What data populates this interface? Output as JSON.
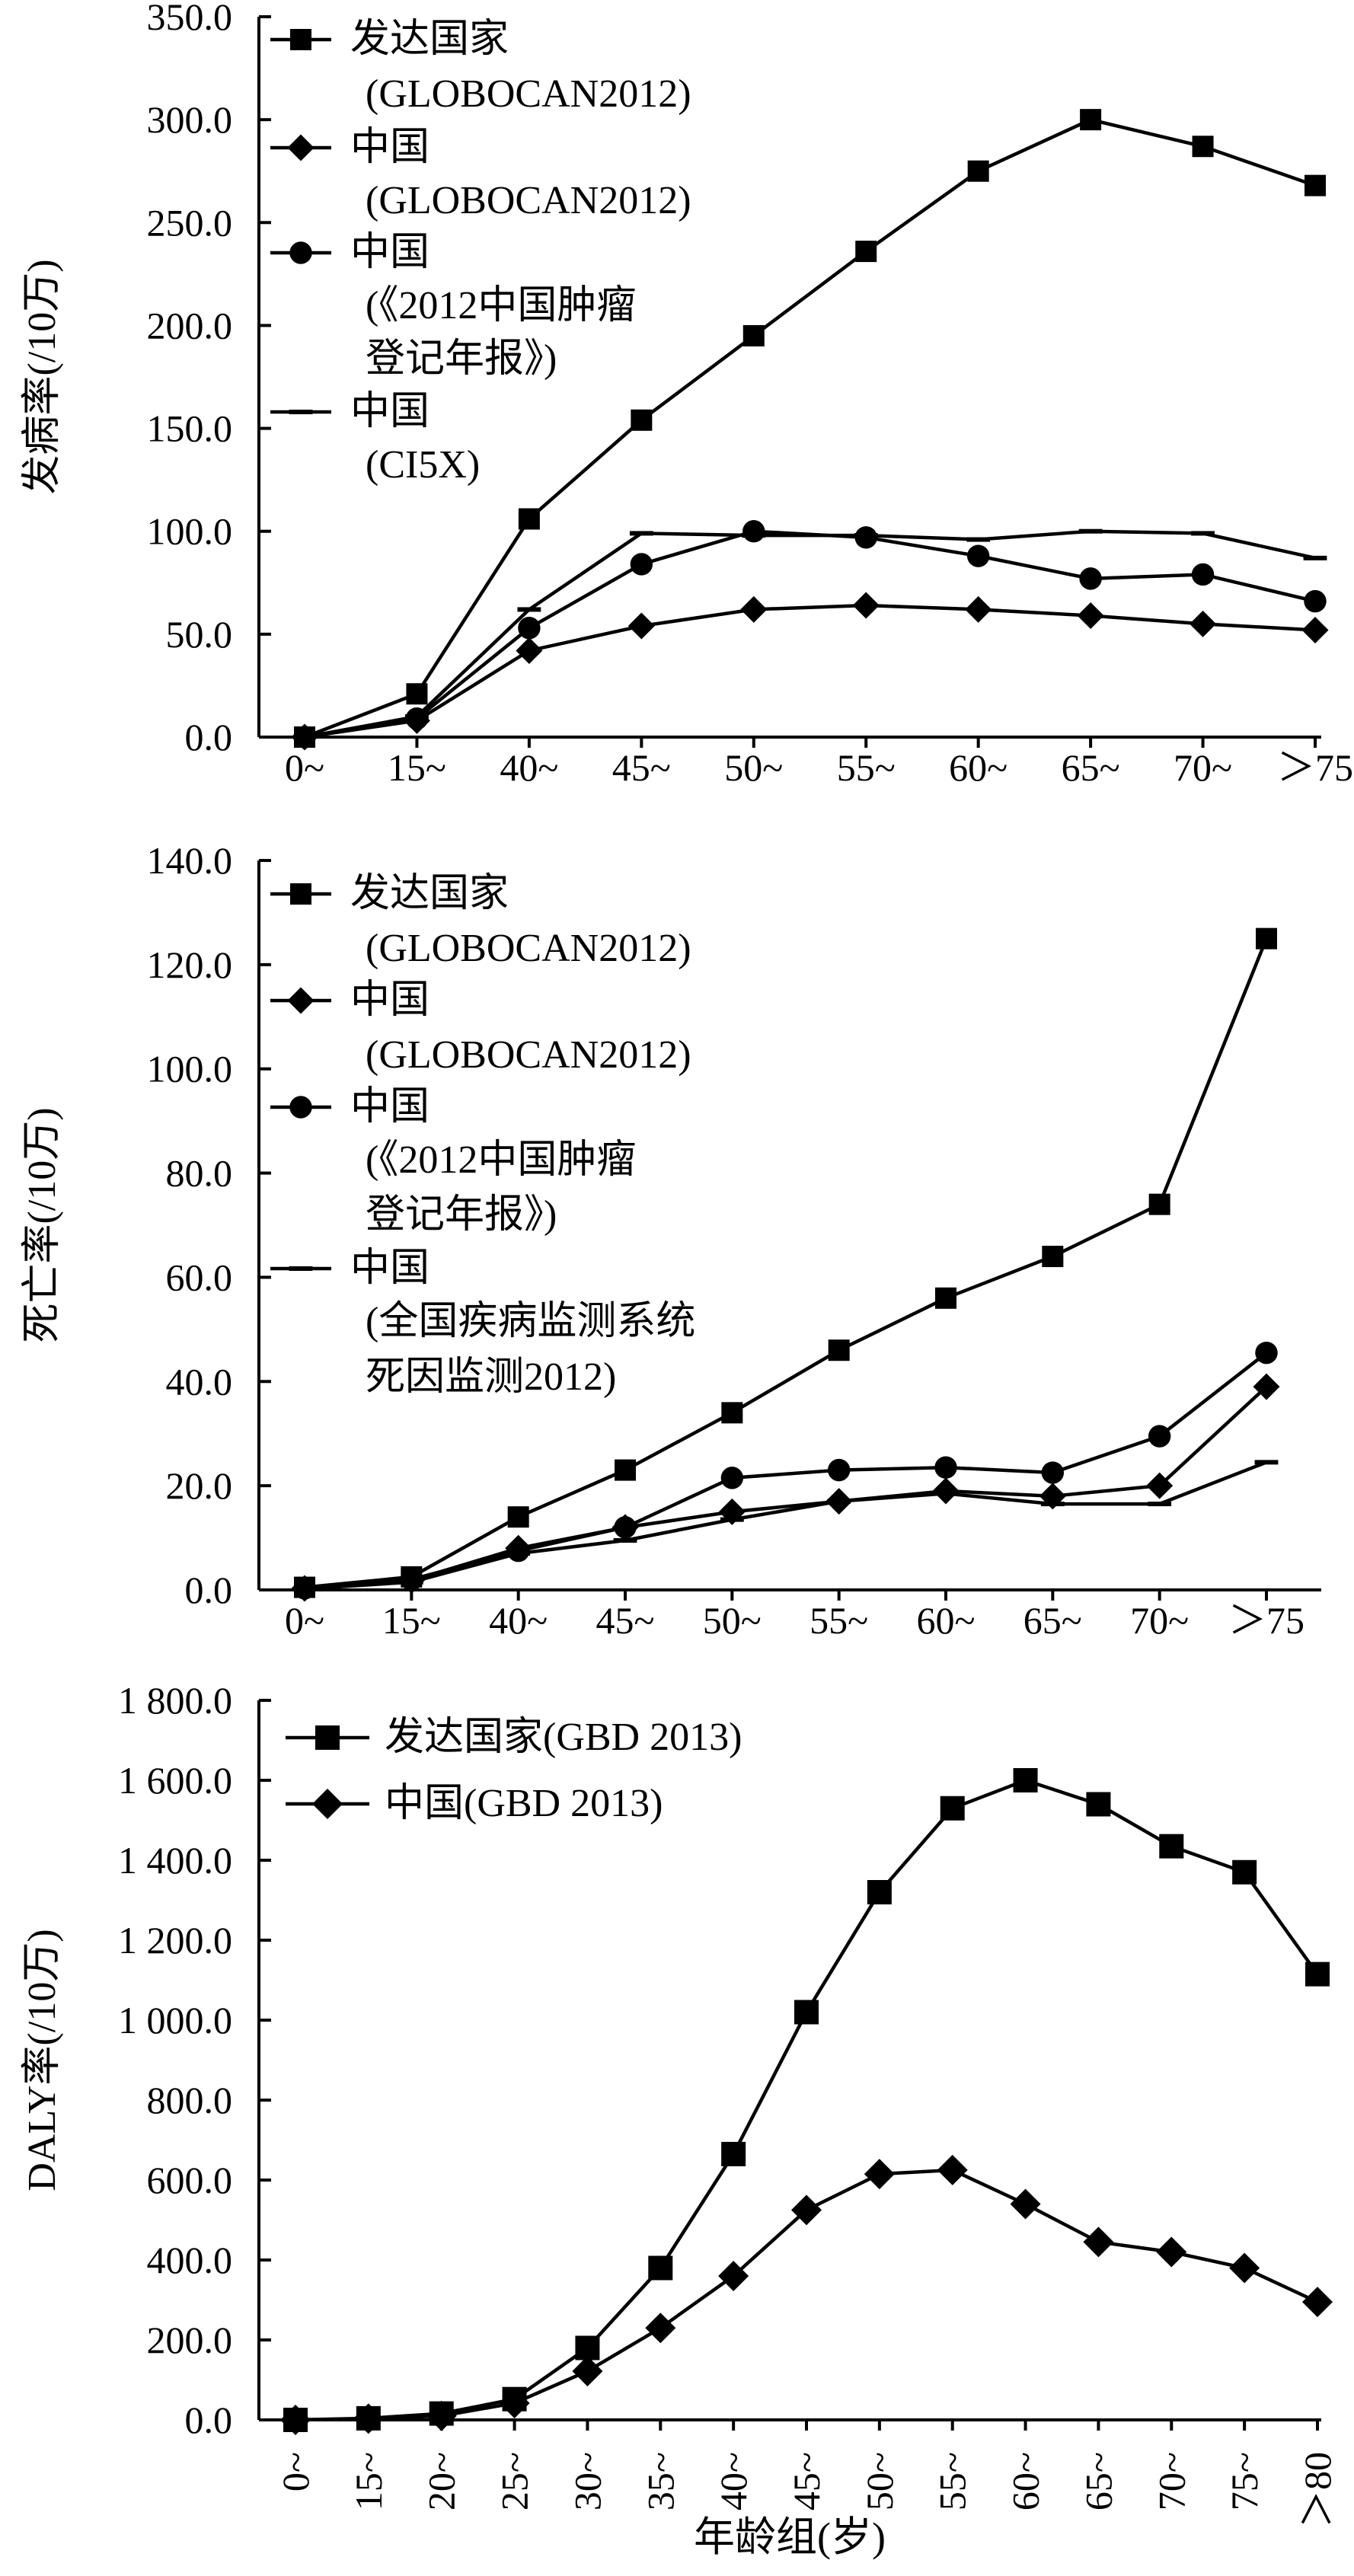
{
  "chart_data": [
    {
      "type": "line",
      "title": "",
      "ylabel": "发病率(/10万)",
      "xlabel": "",
      "ylim": [
        0,
        350
      ],
      "yticks": [
        "0.0",
        "50.0",
        "100.0",
        "150.0",
        "200.0",
        "250.0",
        "300.0",
        "350.0"
      ],
      "categories": [
        "0~",
        "15~",
        "40~",
        "45~",
        "50~",
        "55~",
        "60~",
        "65~",
        "70~",
        "＞75"
      ],
      "series": [
        {
          "name": "发达国家",
          "source": "(GLOBOCAN2012)",
          "marker": "square",
          "values": [
            0,
            21,
            106,
            154,
            195,
            236,
            275,
            300,
            287,
            268
          ]
        },
        {
          "name": "中国",
          "source": "(GLOBOCAN2012)",
          "marker": "diamond",
          "values": [
            0,
            8,
            42,
            54,
            62,
            64,
            62,
            59,
            55,
            52
          ]
        },
        {
          "name": "中国",
          "source": "(《2012中国肿瘤",
          "source2": "登记年报》)",
          "marker": "circle",
          "values": [
            0,
            9,
            53,
            84,
            100,
            97,
            88,
            77,
            79,
            66
          ]
        },
        {
          "name": "中国",
          "source": "(CI5X)",
          "marker": "dash",
          "values": [
            0,
            10,
            62,
            99,
            98,
            98,
            96,
            100,
            99,
            87
          ]
        }
      ]
    },
    {
      "type": "line",
      "title": "",
      "ylabel": "死亡率(/10万)",
      "xlabel": "",
      "ylim": [
        0,
        140
      ],
      "yticks": [
        "0.0",
        "20.0",
        "40.0",
        "60.0",
        "80.0",
        "100.0",
        "120.0",
        "140.0"
      ],
      "categories": [
        "0~",
        "15~",
        "40~",
        "45~",
        "50~",
        "55~",
        "60~",
        "65~",
        "70~",
        "＞75"
      ],
      "series": [
        {
          "name": "发达国家",
          "source": "(GLOBOCAN2012)",
          "marker": "square",
          "values": [
            0.5,
            2.5,
            14,
            23,
            34,
            46,
            56,
            64,
            74,
            125
          ]
        },
        {
          "name": "中国",
          "source": "(GLOBOCAN2012)",
          "marker": "diamond",
          "values": [
            0.3,
            1.8,
            8,
            12,
            15,
            17,
            19,
            18,
            20,
            39
          ]
        },
        {
          "name": "中国",
          "source": "(《2012中国肿瘤",
          "source2": "登记年报》)",
          "marker": "circle",
          "values": [
            0.3,
            2.0,
            7.5,
            12,
            21.5,
            23,
            23.5,
            22.5,
            29.5,
            45.5
          ]
        },
        {
          "name": "中国",
          "source": "(全国疾病监测系统",
          "source2": "死因监测2012)",
          "marker": "dash",
          "values": [
            0.2,
            1.5,
            7,
            9.5,
            13.5,
            17,
            18.5,
            16.5,
            16.5,
            24.5
          ]
        }
      ]
    },
    {
      "type": "line",
      "title": "",
      "ylabel": "DALY率(/10万)",
      "xlabel": "年龄组(岁)",
      "ylim": [
        0,
        1800
      ],
      "yticks": [
        "0.0",
        "200.0",
        "400.0",
        "600.0",
        "800.0",
        "1 000.0",
        "1 200.0",
        "1 400.0",
        "1 600.0",
        "1 800.0"
      ],
      "categories": [
        "0~",
        "15~",
        "20~",
        "25~",
        "30~",
        "35~",
        "40~",
        "45~",
        "50~",
        "55~",
        "60~",
        "65~",
        "70~",
        "75~",
        "＞80"
      ],
      "series": [
        {
          "name": "发达国家(GBD 2013)",
          "marker": "square",
          "values": [
            0,
            4,
            16,
            52,
            180,
            380,
            665,
            1020,
            1320,
            1530,
            1600,
            1540,
            1435,
            1370,
            1115
          ]
        },
        {
          "name": "中国(GBD 2013)",
          "marker": "diamond",
          "values": [
            0,
            3,
            10,
            42,
            122,
            230,
            360,
            525,
            615,
            625,
            540,
            445,
            420,
            380,
            295
          ]
        }
      ]
    }
  ]
}
